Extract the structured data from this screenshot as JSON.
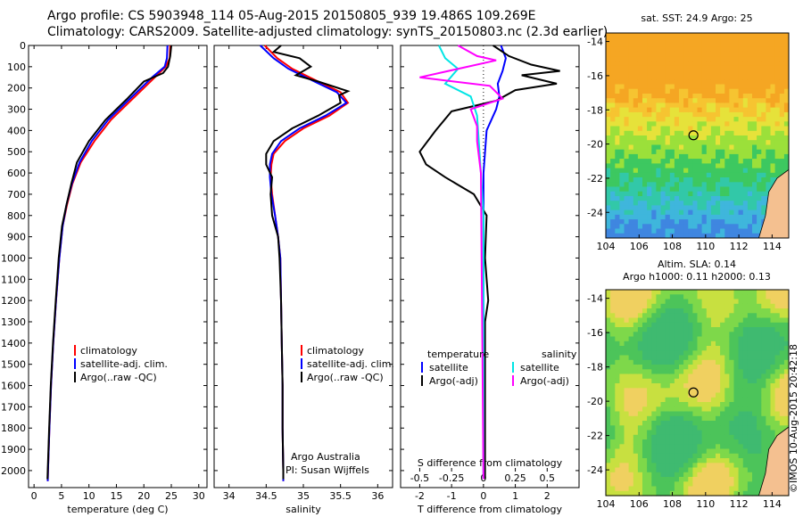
{
  "header": {
    "line1": "Argo profile: CS 5903948_114 05-Aug-2015 20150805_939 19.486S 109.269E",
    "line2": "Climatology: CARS2009. Satellite-adjusted climatology: synTS_20150803.nc (2.3d earlier)"
  },
  "colors": {
    "climatology": "#ff0000",
    "satellite": "#0000ff",
    "argo": "#000000",
    "sal_satellite": "#00e5e5",
    "sal_argo": "#ff00ff",
    "land": "#f4c090"
  },
  "chart_data": [
    {
      "type": "line",
      "name": "temperature-profile",
      "xlabel": "temperature (deg C)",
      "ylabel": "",
      "xlim": [
        -1,
        31.5
      ],
      "ylim": [
        2080,
        0
      ],
      "xticks": [
        0,
        5,
        10,
        15,
        20,
        25,
        30
      ],
      "yticks": [
        0,
        100,
        200,
        300,
        400,
        500,
        600,
        700,
        800,
        900,
        1000,
        1100,
        1200,
        1300,
        1400,
        1500,
        1600,
        1700,
        1800,
        1900,
        2000
      ],
      "legend": [
        "climatology",
        "satellite-adj. clim.",
        "Argo(..raw -QC)"
      ],
      "series": [
        {
          "name": "climatology",
          "points": [
            [
              24.8,
              0
            ],
            [
              24.7,
              60
            ],
            [
              24.0,
              100
            ],
            [
              22,
              150
            ],
            [
              18,
              250
            ],
            [
              14,
              350
            ],
            [
              11,
              450
            ],
            [
              8.5,
              550
            ],
            [
              7,
              650
            ],
            [
              6,
              750
            ],
            [
              5.2,
              850
            ],
            [
              4.6,
              1000
            ],
            [
              4.0,
              1200
            ],
            [
              3.5,
              1400
            ],
            [
              3.1,
              1600
            ],
            [
              2.8,
              1800
            ],
            [
              2.55,
              2000
            ],
            [
              2.5,
              2050
            ]
          ]
        },
        {
          "name": "satellite-adj. clim.",
          "points": [
            [
              24.3,
              0
            ],
            [
              24.2,
              60
            ],
            [
              23.8,
              100
            ],
            [
              21.5,
              150
            ],
            [
              17.5,
              250
            ],
            [
              13.5,
              350
            ],
            [
              10.5,
              450
            ],
            [
              8.3,
              550
            ],
            [
              6.9,
              650
            ],
            [
              5.9,
              750
            ],
            [
              5.2,
              850
            ],
            [
              4.6,
              1000
            ],
            [
              4.0,
              1200
            ],
            [
              3.5,
              1400
            ],
            [
              3.1,
              1600
            ],
            [
              2.8,
              1800
            ],
            [
              2.55,
              2000
            ],
            [
              2.5,
              2050
            ]
          ]
        },
        {
          "name": "Argo(..raw -QC)",
          "points": [
            [
              25.0,
              0
            ],
            [
              24.8,
              50
            ],
            [
              24.4,
              100
            ],
            [
              23.5,
              130
            ],
            [
              20,
              170
            ],
            [
              17,
              250
            ],
            [
              13,
              350
            ],
            [
              10,
              450
            ],
            [
              7.8,
              550
            ],
            [
              6.8,
              650
            ],
            [
              5.9,
              750
            ],
            [
              5.1,
              850
            ],
            [
              4.5,
              1000
            ],
            [
              3.95,
              1200
            ],
            [
              3.45,
              1400
            ],
            [
              3.05,
              1600
            ],
            [
              2.75,
              1800
            ],
            [
              2.5,
              2000
            ],
            [
              2.45,
              2040
            ]
          ]
        }
      ]
    },
    {
      "type": "line",
      "name": "salinity-profile",
      "xlabel": "salinity",
      "xlim": [
        33.8,
        36.2
      ],
      "ylim": [
        2080,
        0
      ],
      "xticks": [
        34,
        34.5,
        35,
        35.5,
        36
      ],
      "legend": [
        "climatology",
        "satellite-adj. clim.",
        "Argo(..raw -QC)"
      ],
      "annotations": [
        "Argo Australia",
        "PI: Susan Wijffels"
      ],
      "series": [
        {
          "name": "climatology",
          "points": [
            [
              34.48,
              0
            ],
            [
              34.65,
              60
            ],
            [
              34.85,
              110
            ],
            [
              35.2,
              170
            ],
            [
              35.5,
              220
            ],
            [
              35.6,
              270
            ],
            [
              35.35,
              330
            ],
            [
              35.0,
              390
            ],
            [
              34.75,
              450
            ],
            [
              34.6,
              510
            ],
            [
              34.57,
              560
            ],
            [
              34.56,
              620
            ],
            [
              34.58,
              700
            ],
            [
              34.62,
              800
            ],
            [
              34.66,
              900
            ],
            [
              34.69,
              1000
            ],
            [
              34.7,
              1200
            ],
            [
              34.71,
              1400
            ],
            [
              34.72,
              1600
            ],
            [
              34.72,
              1800
            ],
            [
              34.73,
              2000
            ],
            [
              34.73,
              2050
            ]
          ]
        },
        {
          "name": "satellite-adj. clim.",
          "points": [
            [
              34.42,
              0
            ],
            [
              34.6,
              60
            ],
            [
              34.8,
              110
            ],
            [
              35.15,
              170
            ],
            [
              35.45,
              220
            ],
            [
              35.58,
              270
            ],
            [
              35.3,
              330
            ],
            [
              34.95,
              390
            ],
            [
              34.7,
              450
            ],
            [
              34.58,
              510
            ],
            [
              34.55,
              560
            ],
            [
              34.55,
              620
            ],
            [
              34.57,
              700
            ],
            [
              34.62,
              800
            ],
            [
              34.66,
              900
            ],
            [
              34.69,
              1000
            ],
            [
              34.7,
              1200
            ],
            [
              34.71,
              1400
            ],
            [
              34.72,
              1600
            ],
            [
              34.72,
              1800
            ],
            [
              34.73,
              2000
            ],
            [
              34.73,
              2050
            ]
          ]
        },
        {
          "name": "Argo(..raw -QC)",
          "points": [
            [
              34.7,
              0
            ],
            [
              34.6,
              30
            ],
            [
              34.95,
              60
            ],
            [
              35.1,
              100
            ],
            [
              34.9,
              140
            ],
            [
              35.2,
              170
            ],
            [
              35.6,
              215
            ],
            [
              35.48,
              235
            ],
            [
              35.5,
              270
            ],
            [
              35.2,
              330
            ],
            [
              34.85,
              390
            ],
            [
              34.6,
              450
            ],
            [
              34.5,
              510
            ],
            [
              34.5,
              560
            ],
            [
              34.58,
              620
            ],
            [
              34.56,
              700
            ],
            [
              34.58,
              800
            ],
            [
              34.66,
              900
            ],
            [
              34.68,
              1000
            ],
            [
              34.7,
              1200
            ],
            [
              34.71,
              1400
            ],
            [
              34.72,
              1600
            ],
            [
              34.72,
              1800
            ],
            [
              34.73,
              2000
            ],
            [
              34.73,
              2040
            ]
          ]
        }
      ]
    },
    {
      "type": "line",
      "name": "difference-profile",
      "xlabel": "T difference from climatology",
      "xlabel_top": "S difference from climatology",
      "xlim": [
        -2.6,
        3.0
      ],
      "ylim": [
        2080,
        0
      ],
      "xticks": [
        -2,
        -1,
        0,
        1,
        2
      ],
      "xticks_s": [
        -0.5,
        -0.25,
        0,
        0.25,
        0.5
      ],
      "legend_temperature": [
        "temperature",
        "satellite",
        "Argo(-adj)"
      ],
      "legend_salinity": [
        "salinity",
        "satellite",
        "Argo(-adj)"
      ],
      "series": [
        {
          "name": "T satellite",
          "points": [
            [
              0.55,
              0
            ],
            [
              0.7,
              60
            ],
            [
              0.6,
              120
            ],
            [
              0.45,
              180
            ],
            [
              0.5,
              240
            ],
            [
              0.4,
              300
            ],
            [
              0.1,
              400
            ],
            [
              0,
              600
            ],
            [
              0,
              2040
            ]
          ]
        },
        {
          "name": "T Argo(-adj)",
          "points": [
            [
              0.3,
              0
            ],
            [
              0.8,
              50
            ],
            [
              1.5,
              90
            ],
            [
              2.4,
              120
            ],
            [
              1.2,
              140
            ],
            [
              2.3,
              180
            ],
            [
              1.0,
              210
            ],
            [
              0.4,
              260
            ],
            [
              -1,
              310
            ],
            [
              -1.5,
              400
            ],
            [
              -2,
              500
            ],
            [
              -1.8,
              560
            ],
            [
              -1.2,
              620
            ],
            [
              -0.3,
              700
            ],
            [
              0.1,
              800
            ],
            [
              0.05,
              1000
            ],
            [
              0.15,
              1200
            ],
            [
              0.05,
              1300
            ],
            [
              0.05,
              2040
            ]
          ]
        },
        {
          "name": "S satellite",
          "points": [
            [
              -0.35,
              0
            ],
            [
              -0.3,
              60
            ],
            [
              -0.2,
              110
            ],
            [
              -0.3,
              180
            ],
            [
              -0.1,
              240
            ],
            [
              -0.05,
              330
            ],
            [
              -0.02,
              600
            ],
            [
              0,
              800
            ],
            [
              0,
              2040
            ]
          ]
        },
        {
          "name": "S Argo(-adj)",
          "points": [
            [
              -0.2,
              0
            ],
            [
              -0.05,
              50
            ],
            [
              0.1,
              70
            ],
            [
              -0.5,
              150
            ],
            [
              0.05,
              190
            ],
            [
              0.15,
              250
            ],
            [
              -0.1,
              300
            ],
            [
              -0.05,
              380
            ],
            [
              -0.05,
              450
            ],
            [
              -0.02,
              600
            ],
            [
              0,
              2040
            ]
          ]
        }
      ]
    },
    {
      "type": "heatmap",
      "name": "sst-map",
      "title": "sat. SST: 24.9 Argo: 25",
      "xlim": [
        104,
        115
      ],
      "ylim": [
        -25.5,
        -13.5
      ],
      "xticks": [
        104,
        106,
        108,
        110,
        112,
        114
      ],
      "yticks": [
        -14,
        -16,
        -18,
        -20,
        -22,
        -24
      ],
      "marker": [
        109.269,
        -19.486
      ]
    },
    {
      "type": "heatmap",
      "name": "sla-map",
      "title_line1": "Altim. SLA: 0.14",
      "title_line2": "Argo h1000: 0.11 h2000: 0.13",
      "xlim": [
        104,
        115
      ],
      "ylim": [
        -25.5,
        -13.5
      ],
      "xticks": [
        104,
        106,
        108,
        110,
        112,
        114
      ],
      "yticks": [
        -14,
        -16,
        -18,
        -20,
        -22,
        -24
      ],
      "marker": [
        109.269,
        -19.486
      ]
    }
  ],
  "credit": "©IMOS 10-Aug-2015 20:42:18"
}
